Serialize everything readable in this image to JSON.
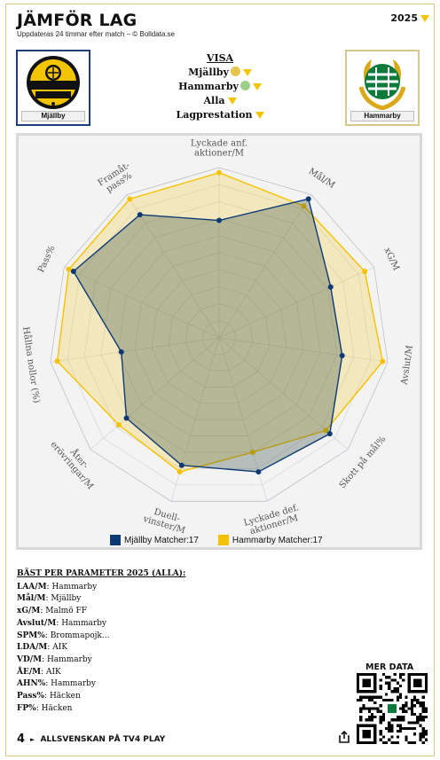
{
  "header": {
    "title": "JÄMFÖR LAG",
    "subtitle": "Uppdateras 24 timmar efter match – © Bolldata.se",
    "year": "2025"
  },
  "teams": {
    "left": {
      "name": "Mjällby",
      "color": "#0e3a73"
    },
    "right": {
      "name": "Hammarby",
      "color": "#f5c200"
    }
  },
  "visa": {
    "heading": "VISA",
    "team1": "Mjällby",
    "team2": "Hammarby",
    "scope": "Alla",
    "metric": "Lagprestation"
  },
  "chart_data": {
    "type": "radar",
    "axes": [
      "Lyckade anf. aktioner/M",
      "Mål/M",
      "xG/M",
      "Avslut/M",
      "Skott på mål%",
      "Lyckade def. aktioner/M",
      "Duell-vinster/M",
      "Åter-erövringar/M",
      "Hållna nollor (%)",
      "Pass%",
      "Framåt-pass%"
    ],
    "axis_label_lines": [
      [
        "Lyckade anf.",
        "aktioner/M"
      ],
      [
        "Mål/M"
      ],
      [
        "xG/M"
      ],
      [
        "Avslut/M"
      ],
      [
        "Skott på mål%"
      ],
      [
        "Lyckade def.",
        "aktioner/M"
      ],
      [
        "Duell-",
        "vinster/M"
      ],
      [
        "Åter-",
        "erövringar/M"
      ],
      [
        "Hållna nollor (%)"
      ],
      [
        "Pass%"
      ],
      [
        "Framåt-",
        "pass%"
      ]
    ],
    "series": [
      {
        "name": "Mjällby Matcher:17",
        "color": "#0e3a73",
        "values": [
          0.69,
          0.97,
          0.72,
          0.73,
          0.86,
          0.82,
          0.78,
          0.72,
          0.58,
          0.94,
          0.86
        ]
      },
      {
        "name": "Hammarby Matcher:17",
        "color": "#f5c200",
        "values": [
          0.97,
          0.92,
          0.94,
          0.97,
          0.83,
          0.7,
          0.82,
          0.78,
          0.96,
          0.97,
          0.97
        ]
      }
    ],
    "grid_levels": 10
  },
  "best": {
    "heading": "BÄST PER PARAMETER 2025 (ALLA):",
    "rows": [
      {
        "key": "LAA/M",
        "value": "Hammarby"
      },
      {
        "key": "Mål/M",
        "value": "Mjällby"
      },
      {
        "key": "xG/M",
        "value": "Malmö FF"
      },
      {
        "key": "Avslut/M",
        "value": "Hammarby"
      },
      {
        "key": "SPM%",
        "value": "Brommapojk..."
      },
      {
        "key": "LDA/M",
        "value": "AIK"
      },
      {
        "key": "VD/M",
        "value": "Hammarby"
      },
      {
        "key": "ÅE/M",
        "value": "AIK"
      },
      {
        "key": "AHN%",
        "value": "Hammarby"
      },
      {
        "key": "Pass%",
        "value": "Häcken"
      },
      {
        "key": "FP%",
        "value": "Häcken"
      }
    ]
  },
  "mer_data": "MER DATA",
  "footer": {
    "brand": "4",
    "text": "ALLSVENSKAN PÅ TV4 PLAY"
  }
}
